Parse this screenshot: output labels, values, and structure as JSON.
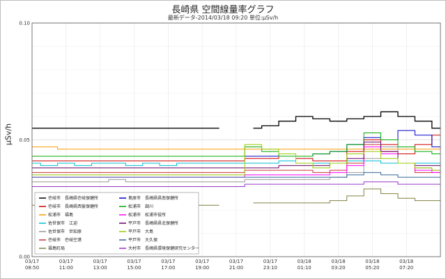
{
  "chart_data": {
    "type": "line",
    "title": "長崎県 空間線量率グラフ",
    "subtitle": "最新データ-2014/03/18 09:20 単位:μSv/h",
    "ylabel": "μSv/h",
    "xlabel": "",
    "ylim": [
      0.0,
      0.1
    ],
    "y_ticks": [
      "0.00",
      "0.05",
      "0.10"
    ],
    "x_ticks": [
      {
        "date": "03/17",
        "time": "08:50"
      },
      {
        "date": "03/17",
        "time": "11:00"
      },
      {
        "date": "03/17",
        "time": "13:00"
      },
      {
        "date": "03/17",
        "time": "15:00"
      },
      {
        "date": "03/17",
        "time": "17:00"
      },
      {
        "date": "03/17",
        "time": "19:00"
      },
      {
        "date": "03/17",
        "time": "21:00"
      },
      {
        "date": "03/17",
        "time": "23:10"
      },
      {
        "date": "03/18",
        "time": "01:10"
      },
      {
        "date": "03/18",
        "time": "03:20"
      },
      {
        "date": "03/18",
        "time": "05:20"
      },
      {
        "date": "03/18",
        "time": "07:20"
      }
    ],
    "grid": true,
    "legend_position": "bottom-left",
    "series": [
      {
        "name": "壱岐市　長崎県壱岐保健所",
        "color": "#000000",
        "values": [
          0.055,
          0.055,
          0.055,
          0.055,
          0.055,
          0.055,
          0.055,
          0.055,
          0.055,
          0.055,
          0.055,
          0.055,
          null,
          0.055,
          0.056,
          0.058,
          0.06,
          0.059,
          0.058,
          0.059,
          0.06,
          0.062,
          0.06,
          0.058,
          0.055
        ]
      },
      {
        "name": "壱岐市　長崎県西彼保健所",
        "color": "#d00000",
        "values": [
          0.041,
          0.041,
          0.041,
          0.041,
          0.041,
          0.041,
          0.041,
          0.041,
          0.041,
          0.041,
          0.041,
          0.041,
          0.041,
          0.042,
          0.042,
          0.043,
          0.042,
          0.041,
          0.041,
          0.045,
          0.05,
          0.048,
          0.044,
          0.048,
          0.052
        ]
      },
      {
        "name": "松浦市　福島",
        "color": "#ff9900",
        "values": [
          0.047,
          0.047,
          0.046,
          0.046,
          0.046,
          0.046,
          0.046,
          0.046,
          0.046,
          0.046,
          0.046,
          0.046,
          0.046,
          0.046,
          0.046,
          0.046,
          0.046,
          0.046,
          0.046,
          0.046,
          0.046,
          0.046,
          0.046,
          0.046,
          0.046
        ]
      },
      {
        "name": "佐世保市　江迎",
        "color": "#00bcd4",
        "values": [
          0.04,
          0.039,
          0.04,
          0.039,
          0.04,
          0.04,
          0.039,
          0.04,
          0.039,
          0.04,
          0.04,
          0.04,
          0.04,
          0.04,
          0.04,
          0.041,
          0.04,
          0.04,
          0.04,
          0.041,
          0.041,
          0.04,
          0.04,
          0.04,
          0.04
        ]
      },
      {
        "name": "佐世保市　世知原",
        "color": "#999999",
        "values": [
          0.032,
          0.032,
          0.032,
          0.032,
          0.032,
          0.033,
          0.032,
          0.032,
          0.032,
          0.032,
          0.032,
          0.032,
          0.032,
          0.033,
          0.033,
          0.033,
          0.033,
          0.033,
          0.034,
          0.036,
          0.042,
          0.047,
          0.04,
          0.038,
          0.037
        ]
      },
      {
        "name": "壱岐市　壱岐空港",
        "color": "#cc3333",
        "values": [
          0.036,
          0.036,
          0.036,
          0.036,
          0.036,
          0.036,
          0.036,
          0.036,
          0.036,
          0.036,
          0.036,
          0.036,
          0.036,
          0.037,
          0.037,
          0.037,
          0.037,
          0.036,
          0.037,
          0.04,
          0.048,
          0.045,
          0.04,
          0.036,
          0.036
        ]
      },
      {
        "name": "福島町局",
        "color": "#808040",
        "values": [
          0.022,
          0.022,
          0.022,
          0.022,
          0.022,
          0.022,
          0.022,
          0.022,
          0.022,
          0.022,
          0.022,
          0.022,
          null,
          0.023,
          0.023,
          0.023,
          0.023,
          0.023,
          0.024,
          0.026,
          0.029,
          0.027,
          0.025,
          0.024,
          0.024
        ]
      },
      {
        "name": "島原市　長崎県県南保健所",
        "color": "#0000cc",
        "values": [
          0.043,
          0.043,
          0.043,
          0.043,
          0.043,
          0.043,
          0.043,
          0.043,
          0.043,
          0.043,
          0.043,
          0.043,
          0.043,
          0.043,
          0.043,
          0.043,
          0.043,
          0.044,
          0.045,
          0.048,
          0.051,
          0.05,
          0.054,
          0.052,
          0.047
        ]
      },
      {
        "name": "松浦市　調川",
        "color": "#00aa00",
        "values": [
          0.043,
          0.043,
          0.043,
          0.043,
          0.043,
          0.043,
          0.043,
          0.043,
          0.043,
          0.043,
          0.043,
          0.043,
          0.043,
          0.047,
          0.045,
          0.043,
          0.043,
          0.044,
          0.045,
          0.048,
          0.053,
          0.05,
          0.047,
          0.045,
          0.044
        ]
      },
      {
        "name": "松浦市　松浦市役所",
        "color": "#ff00ff",
        "values": [
          0.034,
          0.034,
          0.034,
          0.034,
          0.034,
          0.034,
          0.034,
          0.034,
          0.034,
          0.034,
          0.034,
          0.034,
          0.034,
          0.035,
          0.035,
          0.035,
          0.035,
          0.035,
          0.036,
          0.039,
          0.047,
          0.044,
          0.04,
          0.037,
          0.036
        ]
      },
      {
        "name": "平戸市　長崎県県北保健所",
        "color": "#660066",
        "values": [
          0.038,
          0.038,
          0.038,
          0.038,
          0.038,
          0.038,
          0.038,
          0.038,
          0.038,
          0.038,
          0.038,
          0.038,
          0.038,
          0.038,
          0.038,
          0.039,
          0.039,
          0.039,
          0.04,
          0.042,
          0.049,
          0.045,
          0.04,
          0.039,
          0.039
        ]
      },
      {
        "name": "平戸市　大島",
        "color": "#99cc00",
        "values": [
          0.035,
          0.035,
          0.035,
          0.035,
          0.035,
          0.035,
          0.035,
          0.035,
          0.035,
          0.035,
          0.035,
          0.035,
          0.035,
          0.048,
          0.046,
          0.044,
          0.04,
          0.038,
          0.04,
          0.044,
          0.045,
          0.042,
          0.04,
          0.038,
          0.037
        ]
      },
      {
        "name": "平戸市　大久保",
        "color": "#336699",
        "values": [
          0.034,
          0.034,
          0.034,
          0.034,
          0.034,
          0.034,
          0.034,
          0.034,
          0.034,
          0.034,
          0.034,
          0.034,
          0.034,
          0.034,
          0.034,
          0.034,
          0.034,
          0.034,
          0.034,
          0.035,
          0.036,
          0.035,
          0.034,
          0.034,
          0.034
        ]
      },
      {
        "name": "大村市　長崎県環境保健研究センター",
        "color": "#9933cc",
        "values": [
          0.03,
          0.03,
          0.03,
          0.03,
          0.03,
          0.03,
          0.03,
          0.03,
          0.03,
          0.03,
          0.03,
          0.03,
          0.03,
          0.031,
          0.031,
          0.031,
          0.031,
          0.031,
          0.031,
          0.031,
          0.032,
          0.032,
          0.031,
          0.031,
          0.031
        ]
      }
    ]
  },
  "legend_layout": {
    "columns": [
      [
        "壱岐市　長崎県壱岐保健所",
        "壱岐市　長崎県西彼保健所",
        "松浦市　福島",
        "佐世保市　江迎",
        "佐世保市　世知原",
        "壱岐市　壱岐空港",
        "福島町局"
      ],
      [
        "島原市　長崎県県南保健所",
        "松浦市　調川",
        "松浦市　松浦市役所",
        "平戸市　長崎県県北保健所",
        "平戸市　大島",
        "平戸市　大久保",
        "大村市　長崎県環境保健研究センター"
      ]
    ]
  }
}
